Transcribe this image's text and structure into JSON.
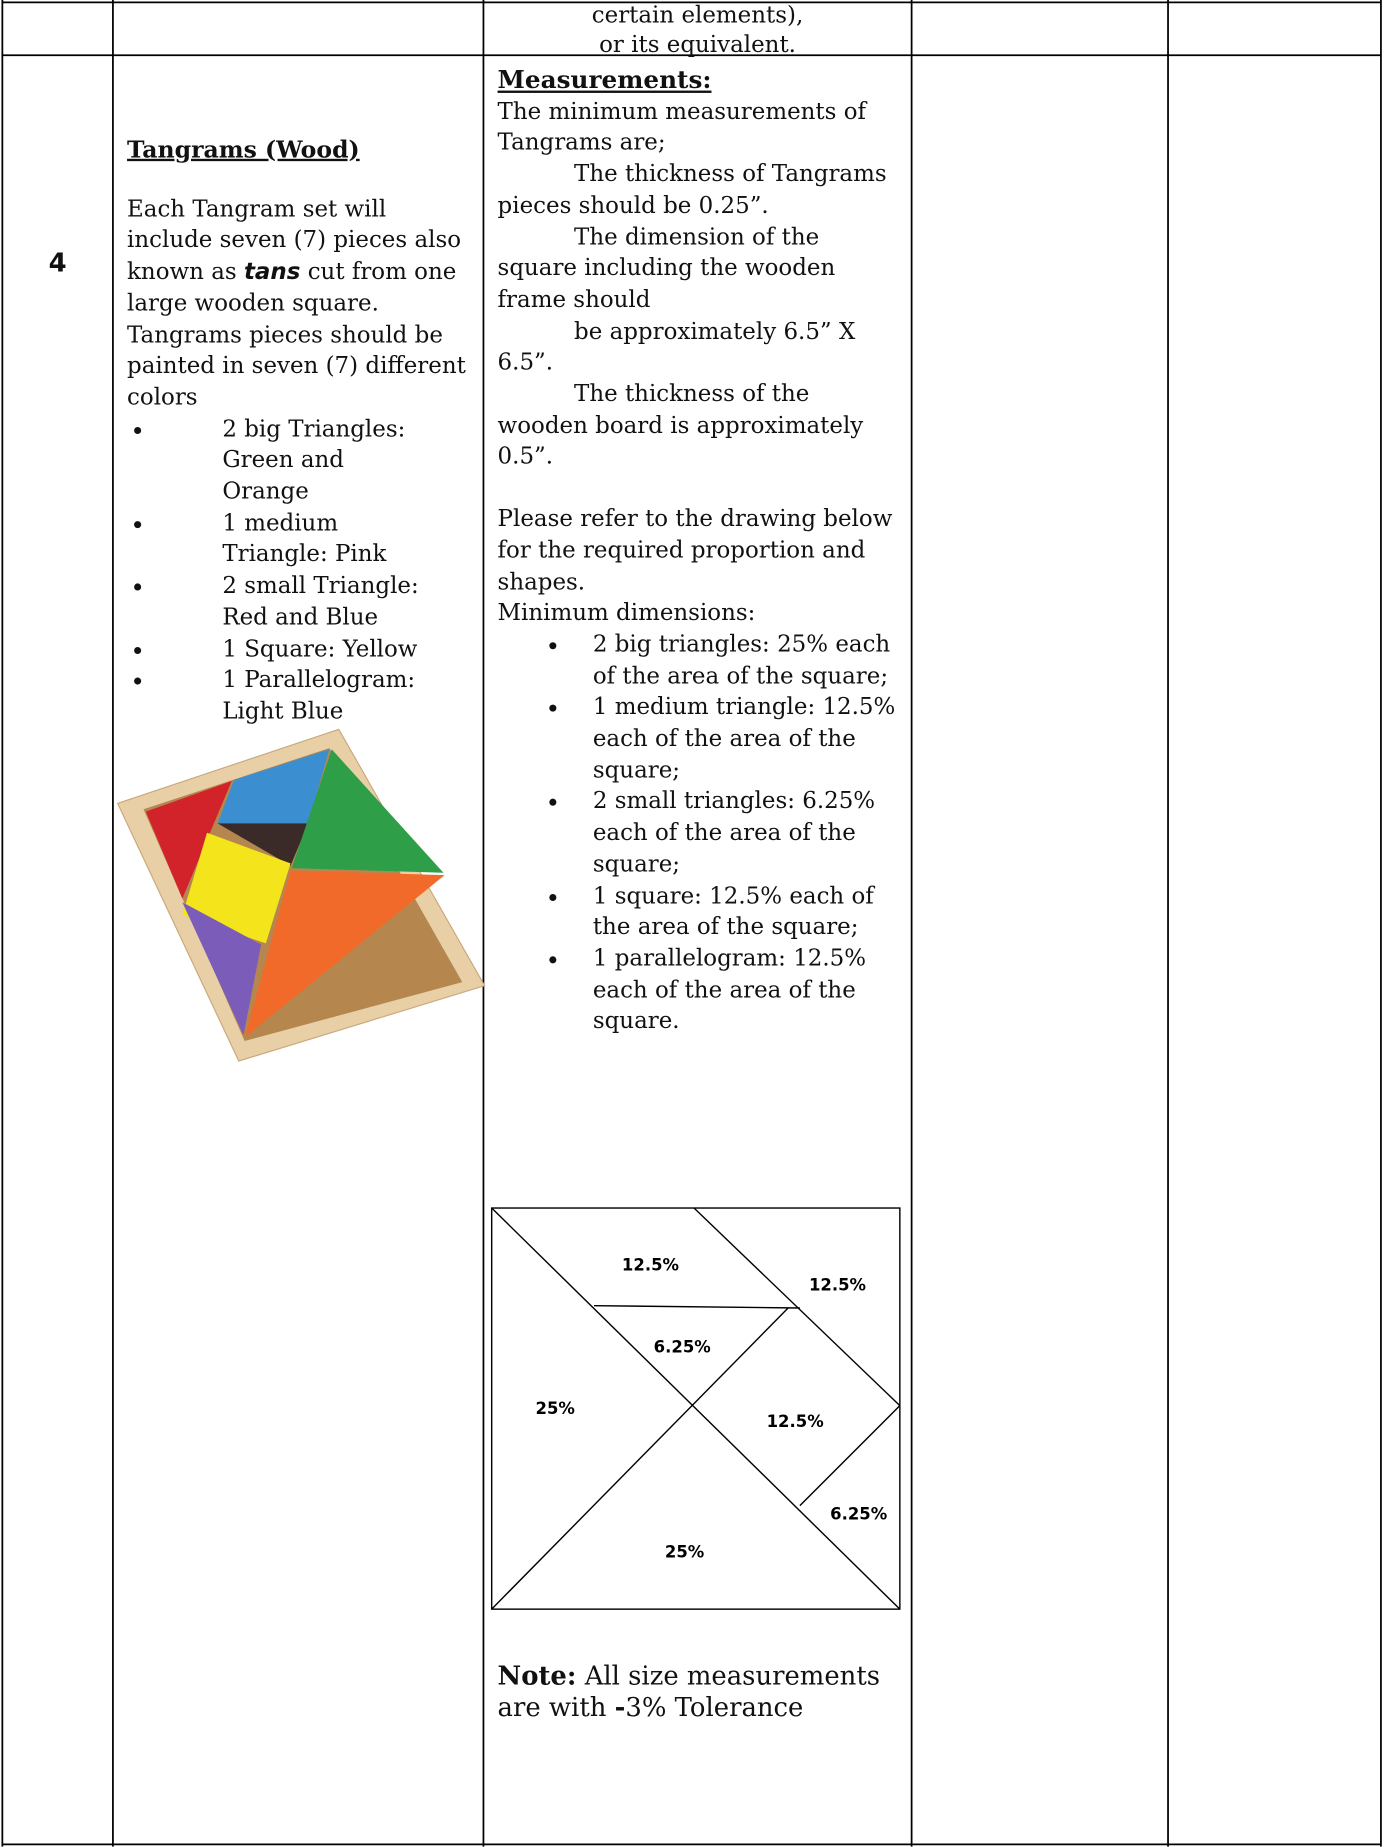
{
  "row_top": {
    "specification": [
      "certain elements),",
      "or its equivalent."
    ]
  },
  "item": {
    "number": "4",
    "title": "Tangrams (Wood)",
    "description": [
      "Each Tangram set will include seven (7) pieces also known as ",
      "tans",
      " cut from one large wooden square. Tangrams pieces should be painted in seven (7) different colors"
    ],
    "pieces": [
      "2 big Triangles: Green and Orange",
      "1 medium Triangle: Pink",
      "2 small Triangle: Red and Blue",
      "1 Square: Yellow",
      "1 Parallelogram: Light Blue"
    ]
  },
  "specification": {
    "heading": "Measurements:",
    "intro": "The minimum measurements of Tangrams are;",
    "requirements": [
      "The thickness of Tangrams pieces should be 0.25”.",
      "The dimension of the square including the wooden frame should",
      "be approximately 6.5” X 6.5”.",
      "The thickness of the wooden board is approximately 0.5”."
    ],
    "reference": "Please refer to the drawing below for the required proportion and shapes.",
    "dimensions_heading": "Minimum dimensions:",
    "dimensions": [
      "2 big triangles: 25% each of the area of the square;",
      "1 medium triangle: 12.5% each of the area of the square;",
      "2 small triangles: 6.25% each of the area of the square;",
      "1 square: 12.5% each of the area of the square;",
      "1 parallelogram: 12.5% each of the area of the square."
    ],
    "diagram_labels": [
      "12.5%",
      "12.5%",
      "6.25%",
      "25%",
      "12.5%",
      "6.25%",
      "25%"
    ],
    "note": {
      "label": "Note:",
      "text_before": " All size measurements are with ",
      "sign": "-",
      "text_after": "3% Tolerance"
    }
  }
}
